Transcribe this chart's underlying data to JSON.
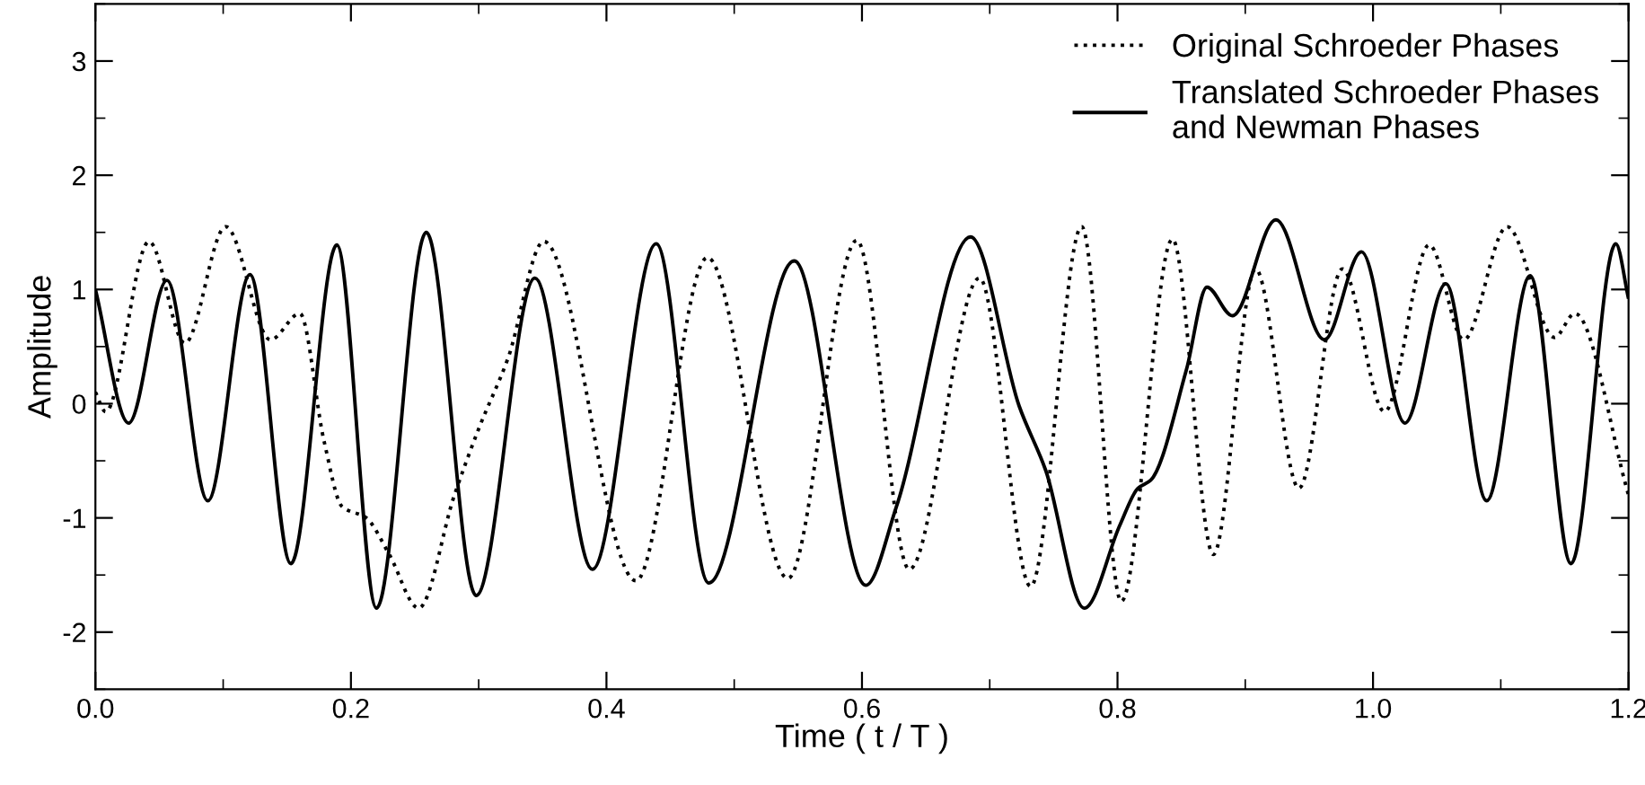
{
  "chart_data": {
    "type": "line",
    "xlabel": "Time ( t / T )",
    "ylabel": "Amplitude",
    "xlim": [
      0,
      1.2
    ],
    "ylim": [
      -2.5,
      3.5
    ],
    "xticks": [
      {
        "value": 0,
        "label": "0.0"
      },
      {
        "value": 0.1,
        "label": null
      },
      0.2,
      {
        "value": 0.3,
        "label": null
      },
      0.4,
      {
        "value": 0.5,
        "label": null
      },
      0.6,
      {
        "value": 0.7,
        "label": null
      },
      0.8,
      {
        "value": 0.9,
        "label": null
      },
      {
        "value": 1.0,
        "label": "1.0"
      },
      {
        "value": 1.1,
        "label": null
      },
      1.2
    ],
    "yticks": [
      {
        "value": -2.5,
        "label": null
      },
      -2,
      {
        "value": -1.5,
        "label": null
      },
      -1,
      {
        "value": -0.5,
        "label": null
      },
      0,
      {
        "value": 0.5,
        "label": null
      },
      1,
      {
        "value": 1.5,
        "label": null
      },
      2,
      {
        "value": 2.5,
        "label": null
      },
      3,
      {
        "value": 3.5,
        "label": null
      }
    ],
    "grid": false,
    "legend": "top right",
    "marker": "none",
    "series": [
      {
        "name": "Original Schroeder Phases",
        "color": "#000000",
        "line_style": "dotted",
        "x": [
          0.0,
          0.008,
          0.042,
          0.07,
          0.102,
          0.137,
          0.16,
          0.179,
          0.193,
          0.212,
          0.23,
          0.253,
          0.281,
          0.3,
          0.323,
          0.351,
          0.423,
          0.479,
          0.542,
          0.596,
          0.637,
          0.692,
          0.732,
          0.772,
          0.803,
          0.843,
          0.875,
          0.908,
          0.942,
          0.976,
          1.009,
          1.044,
          1.071,
          1.105,
          1.142,
          1.158,
          1.2
        ],
        "values": [
          0.1,
          -0.07,
          1.42,
          0.53,
          1.55,
          0.56,
          0.79,
          -0.33,
          -0.9,
          -1.0,
          -1.32,
          -1.79,
          -0.8,
          -0.22,
          0.4,
          1.42,
          -1.55,
          1.28,
          -1.53,
          1.43,
          -1.45,
          1.1,
          -1.6,
          1.55,
          -1.73,
          1.44,
          -1.32,
          1.18,
          -0.74,
          1.18,
          -0.07,
          1.39,
          0.56,
          1.55,
          0.58,
          0.79,
          -0.8
        ]
      },
      {
        "name": "Translated Schroeder Phases\nand Newman Phases",
        "color": "#000000",
        "line_style": "solid",
        "x": [
          0.0,
          0.026,
          0.056,
          0.088,
          0.121,
          0.153,
          0.189,
          0.22,
          0.259,
          0.298,
          0.344,
          0.389,
          0.439,
          0.48,
          0.547,
          0.603,
          0.627,
          0.685,
          0.723,
          0.744,
          0.774,
          0.802,
          0.816,
          0.826,
          0.854,
          0.87,
          0.89,
          0.924,
          0.962,
          0.991,
          1.025,
          1.057,
          1.089,
          1.123,
          1.155,
          1.19,
          1.2
        ],
        "values": [
          1.0,
          -0.17,
          1.08,
          -0.85,
          1.13,
          -1.4,
          1.39,
          -1.79,
          1.5,
          -1.68,
          1.1,
          -1.45,
          1.4,
          -1.57,
          1.25,
          -1.59,
          -0.9,
          1.46,
          -0.02,
          -0.59,
          -1.79,
          -1.06,
          -0.74,
          -0.67,
          0.3,
          1.02,
          0.77,
          1.61,
          0.56,
          1.33,
          -0.17,
          1.05,
          -0.85,
          1.12,
          -1.4,
          1.4,
          0.92
        ]
      }
    ]
  }
}
